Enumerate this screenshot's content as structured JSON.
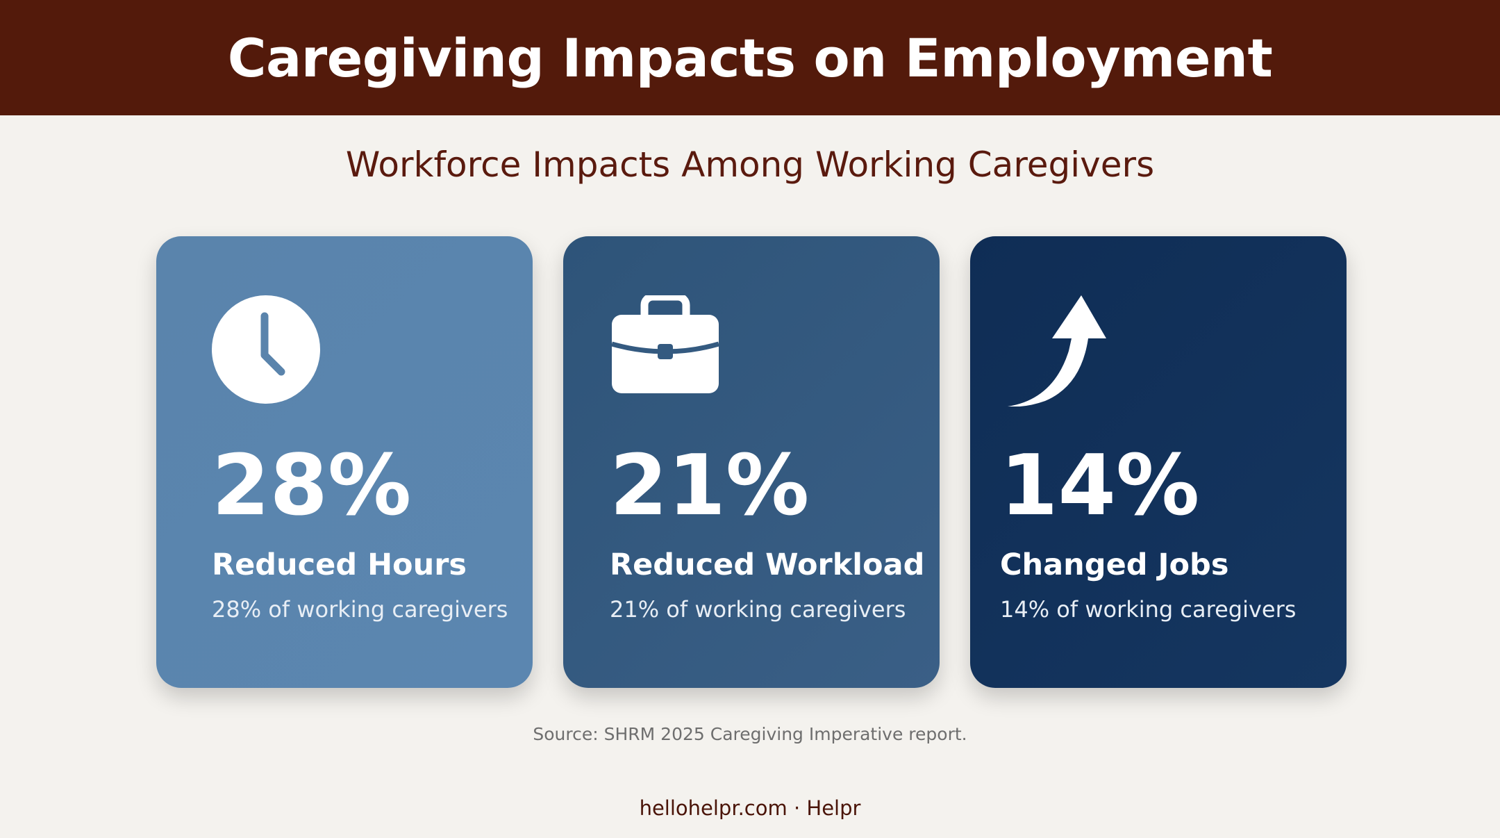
{
  "header": {
    "title": "Caregiving Impacts on Employment"
  },
  "subtitle": "Workforce Impacts Among Working Caregivers",
  "cards": [
    {
      "icon": "clock-icon",
      "value": "28%",
      "label": "Reduced Hours",
      "description": "28% of working caregivers",
      "color": "#5a84ac"
    },
    {
      "icon": "briefcase-icon",
      "value": "21%",
      "label": "Reduced Workload",
      "description": "21% of working caregivers",
      "color": "#345a80"
    },
    {
      "icon": "curved-arrow-up-icon",
      "value": "14%",
      "label": "Changed Jobs",
      "description": "14% of working caregivers",
      "color": "#12315a"
    }
  ],
  "source": "Source: SHRM 2025 Caregiving Imperative report.",
  "footer": "hellohelpr.com · Helpr",
  "colors": {
    "header_bg": "#531a0b",
    "page_bg": "#f4f2ee",
    "subtitle": "#5a1a0e"
  }
}
